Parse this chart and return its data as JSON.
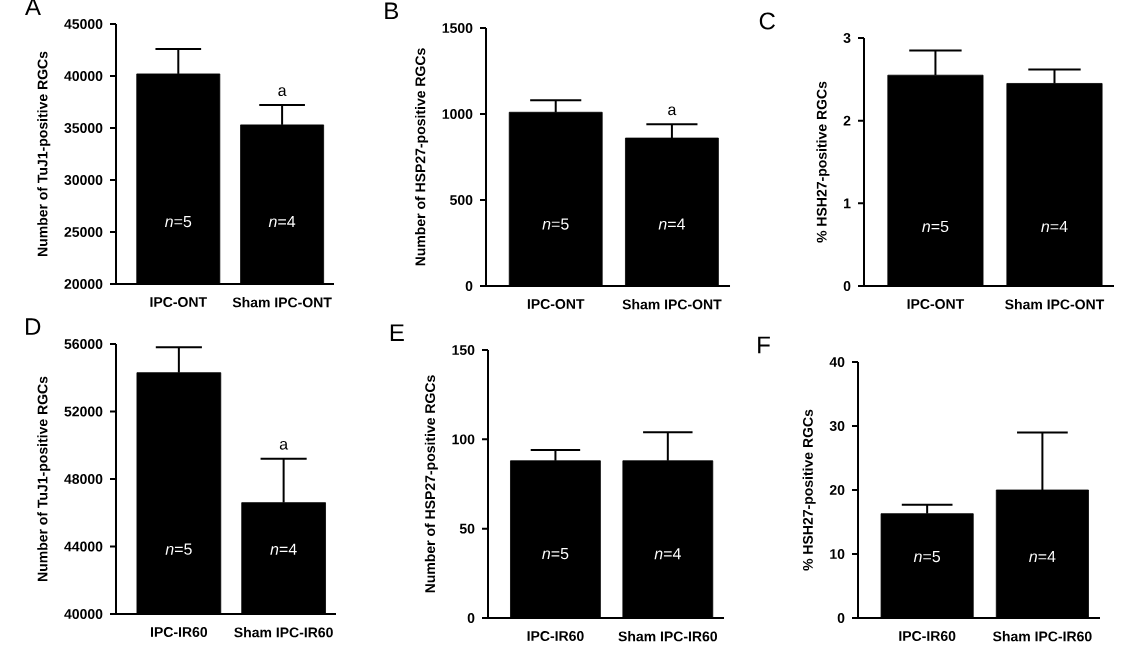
{
  "chart_data": [
    {
      "type": "bar",
      "title": "A",
      "ylabel": "Number of TuJ1-positive RGCs",
      "categories": [
        "IPC-ONT",
        "Sham IPC-ONT"
      ],
      "values": [
        40200,
        35300
      ],
      "errors": [
        [
          40200,
          42600
        ],
        [
          35300,
          37200
        ]
      ],
      "color": "#000000",
      "ylim": [
        20000,
        45000
      ],
      "yticks": [
        20000,
        25000,
        30000,
        35000,
        40000,
        45000
      ],
      "annotations": [
        "*n*=5",
        "*n*=4",
        "a"
      ]
    },
    {
      "type": "bar",
      "title": "B",
      "ylabel": "Number of HSP27-positive RGCs",
      "categories": [
        "IPC-ONT",
        "Sham IPC-ONT"
      ],
      "values": [
        1010,
        860
      ],
      "errors": [
        [
          1010,
          1080
        ],
        [
          860,
          940
        ]
      ],
      "color": "#000000",
      "ylim": [
        0,
        1500
      ],
      "yticks": [
        0,
        500,
        1000,
        1500
      ],
      "annotations": [
        "*n*=5",
        "*n*=4",
        "a"
      ]
    },
    {
      "type": "bar",
      "title": "C",
      "ylabel": "% HSH27-positive RGCs",
      "categories": [
        "IPC-ONT",
        "Sham IPC-ONT"
      ],
      "values": [
        2.55,
        2.45
      ],
      "errors": [
        [
          2.55,
          2.85
        ],
        [
          2.45,
          2.62
        ]
      ],
      "color": "#000000",
      "ylim": [
        0,
        3
      ],
      "yticks": [
        0,
        1,
        2,
        3
      ],
      "annotations": [
        "*n*=5",
        "*n*=4"
      ]
    },
    {
      "type": "bar",
      "title": "D",
      "ylabel": "Number of TuJ1-positive RGCs",
      "categories": [
        "IPC-IR60",
        "Sham IPC-IR60"
      ],
      "values": [
        54300,
        46600
      ],
      "errors": [
        [
          54300,
          55800
        ],
        [
          46600,
          49200
        ]
      ],
      "color": "#000000",
      "ylim": [
        40000,
        56000
      ],
      "yticks": [
        40000,
        44000,
        48000,
        52000,
        56000
      ],
      "annotations": [
        "*n*=5",
        "*n*=4",
        "a"
      ]
    },
    {
      "type": "bar",
      "title": "E",
      "ylabel": "Number of HSP27-positive RGCs",
      "categories": [
        "IPC-IR60",
        "Sham IPC-IR60"
      ],
      "values": [
        88,
        88
      ],
      "errors": [
        [
          88,
          94
        ],
        [
          88,
          104
        ]
      ],
      "color": "#000000",
      "ylim": [
        0,
        150
      ],
      "yticks": [
        0,
        50,
        100,
        150
      ],
      "annotations": [
        "*n*=5",
        "*n*=4"
      ]
    },
    {
      "type": "bar",
      "title": "F",
      "ylabel": "% HSH27-positive RGCs",
      "categories": [
        "IPC-IR60",
        "Sham IPC-IR60"
      ],
      "values": [
        16.3,
        20
      ],
      "errors": [
        [
          16.3,
          17.7
        ],
        [
          20,
          29
        ]
      ],
      "color": "#000000",
      "ylim": [
        0,
        40
      ],
      "yticks": [
        0,
        10,
        20,
        30,
        40
      ],
      "annotations": [
        "*n*=5",
        "*n*=4"
      ]
    }
  ]
}
